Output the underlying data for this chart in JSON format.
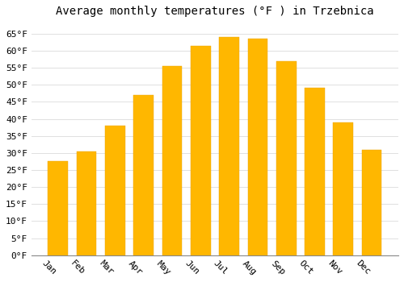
{
  "title": "Average monthly temperatures (°F ) in Trzebnica",
  "months": [
    "Jan",
    "Feb",
    "Mar",
    "Apr",
    "May",
    "Jun",
    "Jul",
    "Aug",
    "Sep",
    "Oct",
    "Nov",
    "Dec"
  ],
  "values": [
    27.5,
    30.5,
    38.0,
    47.0,
    55.5,
    61.5,
    64.0,
    63.5,
    57.0,
    49.0,
    39.0,
    31.0
  ],
  "bar_color_top": "#FFB700",
  "bar_color_bottom": "#FFD966",
  "bar_edge_color": "#E8A000",
  "ylim": [
    0,
    68
  ],
  "yticks": [
    0,
    5,
    10,
    15,
    20,
    25,
    30,
    35,
    40,
    45,
    50,
    55,
    60,
    65
  ],
  "ytick_labels": [
    "0°F",
    "5°F",
    "10°F",
    "15°F",
    "20°F",
    "25°F",
    "30°F",
    "35°F",
    "40°F",
    "45°F",
    "50°F",
    "55°F",
    "60°F",
    "65°F"
  ],
  "bg_color": "#ffffff",
  "grid_color": "#e0e0e0",
  "title_fontsize": 10,
  "tick_fontsize": 8,
  "bar_width": 0.7,
  "xlabel_rotation": -45
}
